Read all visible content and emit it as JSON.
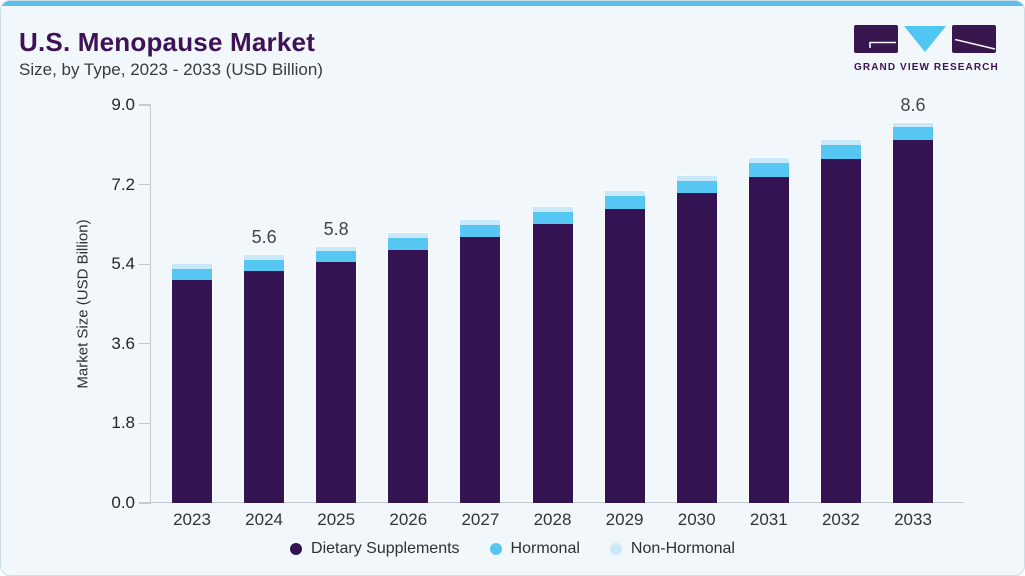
{
  "theme": {
    "accent_blue": "#5cbfea",
    "brand_purple": "#3e1257",
    "card_bg": "#f1f7fa",
    "card_border": "#cddee8",
    "axis_gray": "#c3cbd2"
  },
  "header": {
    "title": "U.S. Menopause Market",
    "subtitle": "Size, by Type, 2023 - 2033 (USD Billion)"
  },
  "logo": {
    "wordmark": "GRAND VIEW RESEARCH",
    "mark_color": "#38164e",
    "triangle_color": "#52c6f3"
  },
  "chart_data": {
    "type": "bar",
    "stacked": true,
    "title": "U.S. Menopause Market Size, by Type, 2023 - 2033 (USD Billion)",
    "categories": [
      "2023",
      "2024",
      "2025",
      "2026",
      "2027",
      "2028",
      "2029",
      "2030",
      "2031",
      "2032",
      "2033"
    ],
    "series": [
      {
        "name": "Dietary Supplements",
        "color": "#341352",
        "values": [
          5.05,
          5.25,
          5.45,
          5.72,
          6.01,
          6.3,
          6.65,
          7.0,
          7.38,
          7.78,
          8.2
        ]
      },
      {
        "name": "Hormonal",
        "color": "#56c7f3",
        "values": [
          0.24,
          0.25,
          0.25,
          0.27,
          0.28,
          0.29,
          0.29,
          0.29,
          0.31,
          0.31,
          0.3
        ]
      },
      {
        "name": "Non-Hormonal",
        "color": "#c9e9fa",
        "values": [
          0.11,
          0.1,
          0.1,
          0.11,
          0.11,
          0.11,
          0.11,
          0.11,
          0.11,
          0.11,
          0.1
        ]
      }
    ],
    "totals": [
      5.4,
      5.6,
      5.8,
      6.1,
      6.4,
      6.7,
      7.05,
      7.4,
      7.8,
      8.2,
      8.6
    ],
    "bar_labels": {
      "2024": "5.6",
      "2025": "5.8",
      "2033": "8.6"
    },
    "ylabel": "Market Size (USD Billion)",
    "xlabel": "",
    "y_ticks": [
      "0.0",
      "1.8",
      "3.6",
      "5.4",
      "7.2",
      "9.0"
    ],
    "ylim": [
      0,
      9
    ],
    "grid": false,
    "legend_position": "bottom"
  }
}
